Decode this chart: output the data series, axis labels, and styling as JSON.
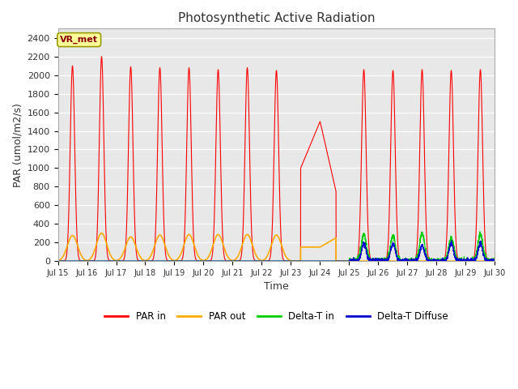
{
  "title": "Photosynthetic Active Radiation",
  "xlabel": "Time",
  "ylabel": "PAR (umol/m2/s)",
  "ylim": [
    0,
    2500
  ],
  "yticks": [
    0,
    200,
    400,
    600,
    800,
    1000,
    1200,
    1400,
    1600,
    1800,
    2000,
    2200,
    2400
  ],
  "fig_bg_color": "#ffffff",
  "plot_bg_color": "#e8e8e8",
  "annotation_label": "VR_met",
  "annotation_box_color": "#ffff99",
  "annotation_box_edge": "#999900",
  "annotation_text_color": "#880000",
  "legend_entries": [
    "PAR in",
    "PAR out",
    "Delta-T in",
    "Delta-T Diffuse"
  ],
  "legend_colors": [
    "#ff0000",
    "#ffaa00",
    "#00cc00",
    "#0000cc"
  ],
  "line_colors": {
    "PAR_in": "#ff0000",
    "PAR_out": "#ffaa00",
    "DeltaT_in": "#00cc00",
    "DeltaT_Diffuse": "#0000cc"
  },
  "xtick_labels": [
    "Jul 15",
    "Jul 16",
    "Jul 17",
    "Jul 18",
    "Jul 19",
    "Jul 20",
    "Jul 21",
    "Jul 22",
    "Jul 23",
    "Jul 24",
    "Jul 25",
    "Jul 26",
    "Jul 27",
    "Jul 28",
    "Jul 29",
    "Jul 30"
  ]
}
